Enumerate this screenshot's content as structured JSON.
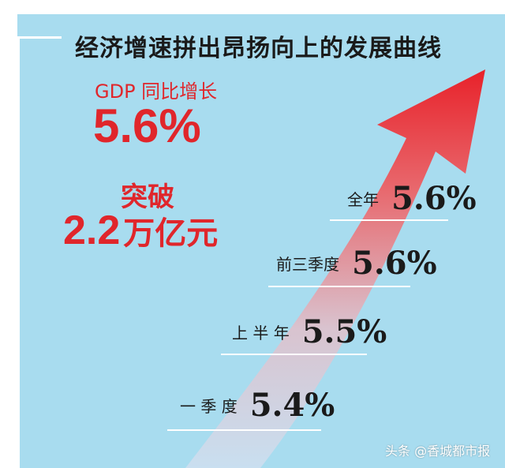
{
  "title": "经济增速拼出昂扬向上的发展曲线",
  "gdp_label": "GDP 同比增长",
  "gdp_value": "5.6%",
  "breakthrough_label": "突破",
  "breakthrough_value": "2.2",
  "breakthrough_unit": "万亿元",
  "quarters": [
    {
      "label": "全年",
      "value": "5.6%"
    },
    {
      "label": "前三季度",
      "value": "5.6%"
    },
    {
      "label": "上 半 年",
      "value": "5.5%"
    },
    {
      "label": "一 季 度",
      "value": "5.4%"
    }
  ],
  "watermark": "头条 @香城都市报",
  "colors": {
    "background": "#a8dcef",
    "accent_red": "#e0262b",
    "arrow_top": "#e8222a",
    "arrow_bottom": "#c9dff0"
  }
}
